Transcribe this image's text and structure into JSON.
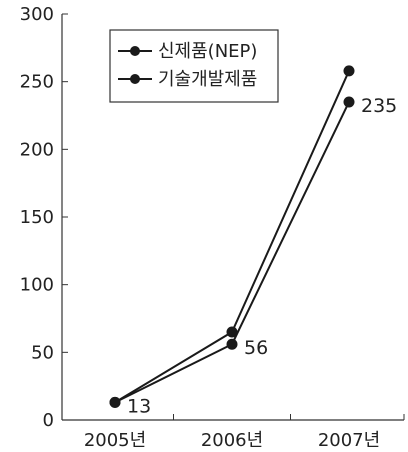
{
  "chart_data": {
    "type": "line",
    "categories": [
      "2005년",
      "2006년",
      "2007년"
    ],
    "ylim": [
      0,
      300
    ],
    "yticks": [
      0,
      50,
      100,
      150,
      200,
      250,
      300
    ],
    "grid": false,
    "legend_position": "top-left",
    "series": [
      {
        "name": "신제품(NEP)",
        "values": [
          13,
          65,
          258
        ],
        "data_labels": [
          null,
          null,
          null
        ]
      },
      {
        "name": "기술개발제품",
        "values": [
          13,
          56,
          235
        ],
        "data_labels": [
          "13",
          "56",
          "235"
        ]
      }
    ],
    "colors": {
      "line": "#1a1a1a",
      "marker": "#1a1a1a",
      "axis": "#333333",
      "text": "#222222"
    }
  }
}
